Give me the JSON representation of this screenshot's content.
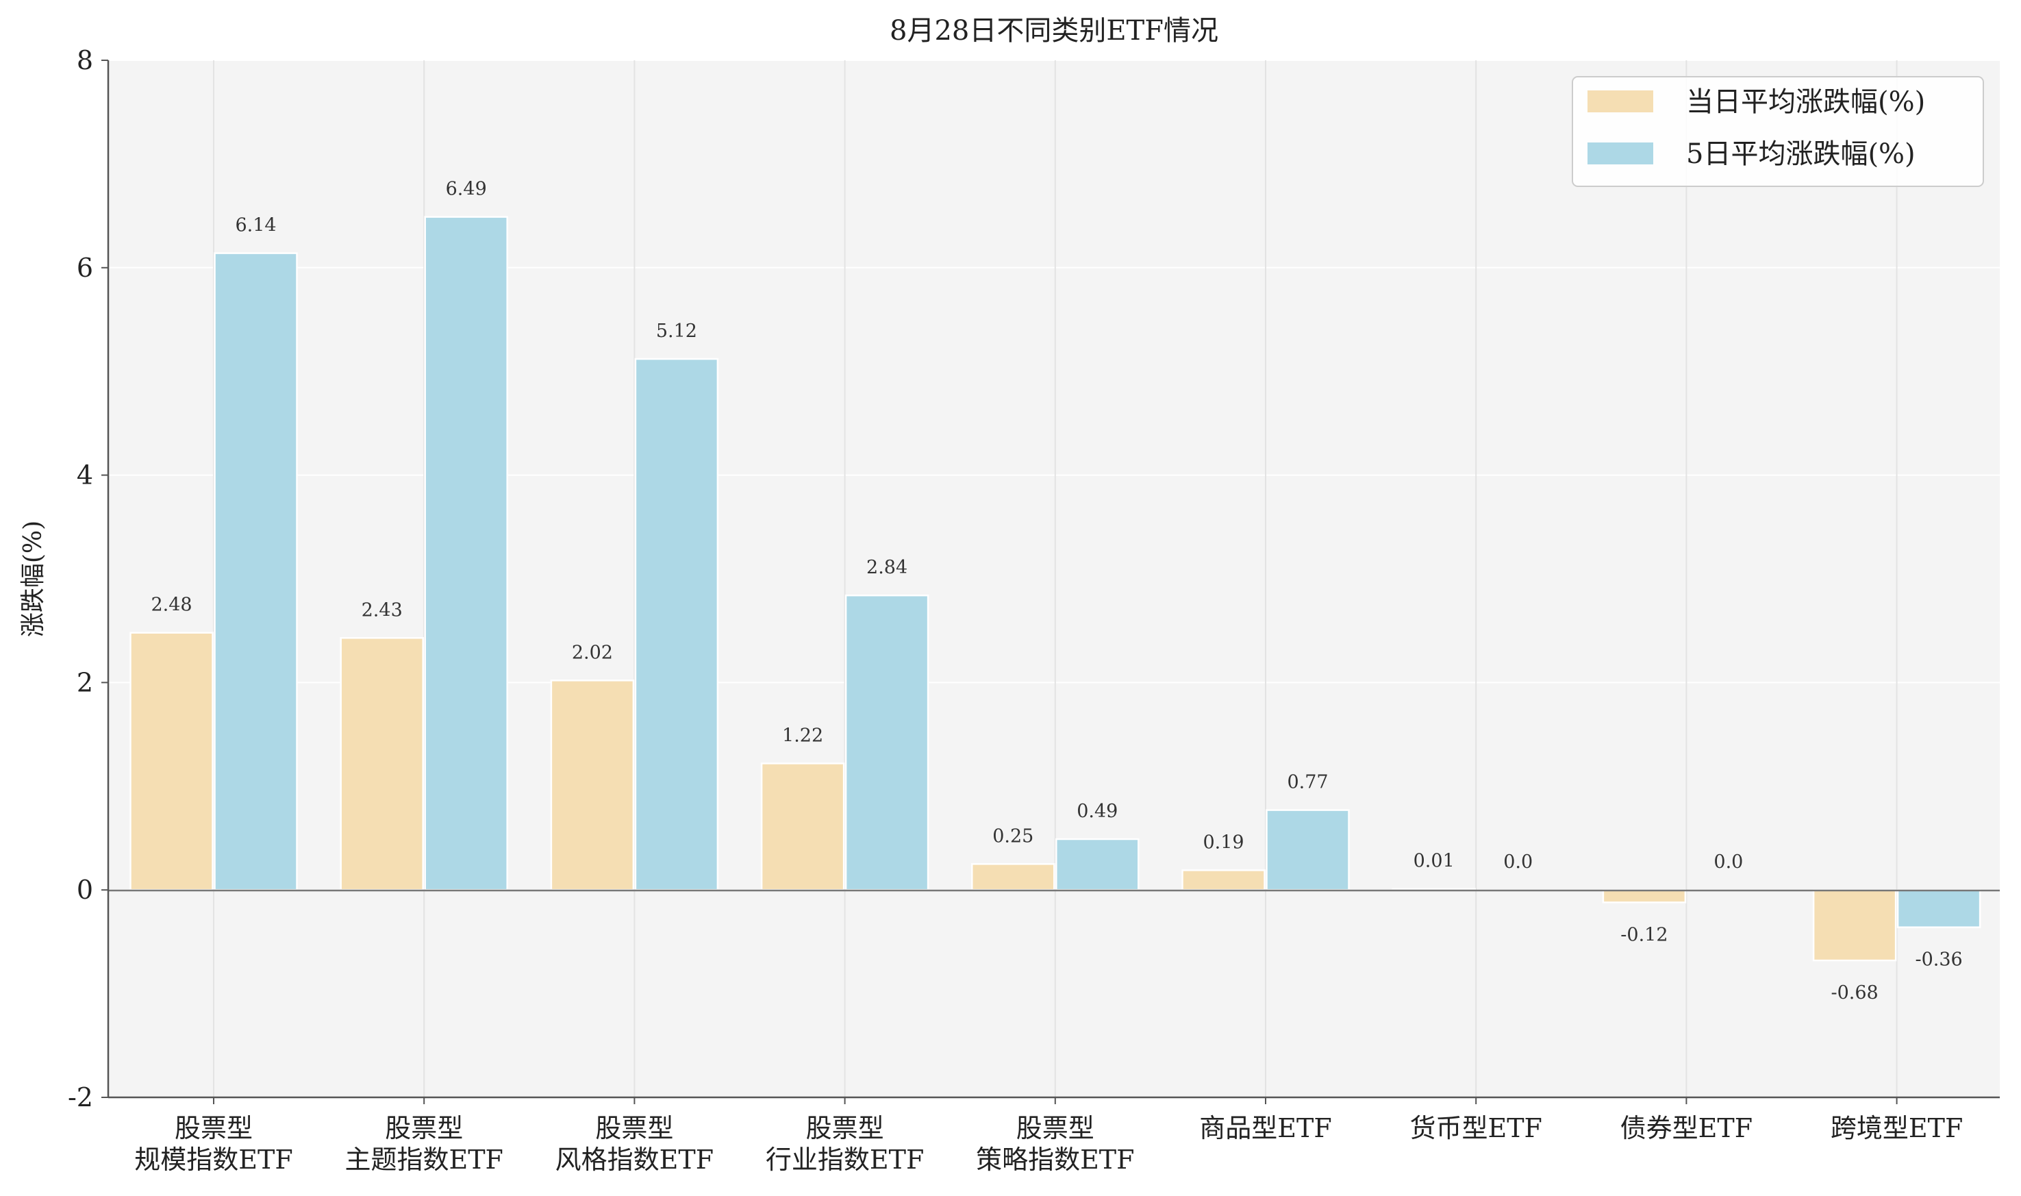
{
  "chart_data": {
    "type": "bar",
    "title": "8月28日不同类别ETF情况",
    "xlabel": "",
    "ylabel": "涨跌幅(%)",
    "ylim": [
      -2,
      8
    ],
    "yticks": [
      "-2",
      "0",
      "2",
      "4",
      "6",
      "8"
    ],
    "grid": true,
    "legend_position": "top-right",
    "categories": [
      [
        "股票型",
        "规模指数ETF"
      ],
      [
        "股票型",
        "主题指数ETF"
      ],
      [
        "股票型",
        "风格指数ETF"
      ],
      [
        "股票型",
        "行业指数ETF"
      ],
      [
        "股票型",
        "策略指数ETF"
      ],
      [
        "商品型ETF"
      ],
      [
        "货币型ETF"
      ],
      [
        "债券型ETF"
      ],
      [
        "跨境型ETF"
      ]
    ],
    "series": [
      {
        "name": "当日平均涨跌幅(%)",
        "color": "#f5deb3",
        "values": [
          2.48,
          2.43,
          2.02,
          1.22,
          0.25,
          0.19,
          0.01,
          -0.12,
          -0.68
        ],
        "labels": [
          "2.48",
          "2.43",
          "2.02",
          "1.22",
          "0.25",
          "0.19",
          "0.01",
          "-0.12",
          "-0.68"
        ]
      },
      {
        "name": "5日平均涨跌幅(%)",
        "color": "#add8e6",
        "values": [
          6.14,
          6.49,
          5.12,
          2.84,
          0.49,
          0.77,
          0.0,
          0.0,
          -0.36
        ],
        "labels": [
          "6.14",
          "6.49",
          "5.12",
          "2.84",
          "0.49",
          "0.77",
          "0.0",
          "0.0",
          "-0.36"
        ]
      }
    ]
  }
}
